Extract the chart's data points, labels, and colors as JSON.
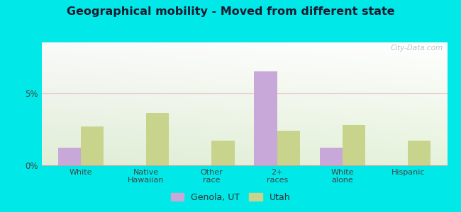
{
  "title": "Geographical mobility - Moved from different state",
  "categories": [
    "White",
    "Native\nHawaiian",
    "Other\nrace",
    "2+\nraces",
    "White\nalone",
    "Hispanic"
  ],
  "genola_values": [
    1.2,
    0.0,
    0.0,
    6.5,
    1.2,
    0.0
  ],
  "utah_values": [
    2.7,
    3.6,
    1.7,
    2.4,
    2.8,
    1.7
  ],
  "genola_color": "#c8a8d8",
  "utah_color": "#c8d48c",
  "ylim": [
    0,
    8.5
  ],
  "yticks": [
    0,
    5
  ],
  "ytick_labels": [
    "0%",
    "5%"
  ],
  "outer_bg": "#00e8e8",
  "bar_width": 0.35,
  "legend_labels": [
    "Genola, UT",
    "Utah"
  ],
  "watermark": "City-Data.com"
}
